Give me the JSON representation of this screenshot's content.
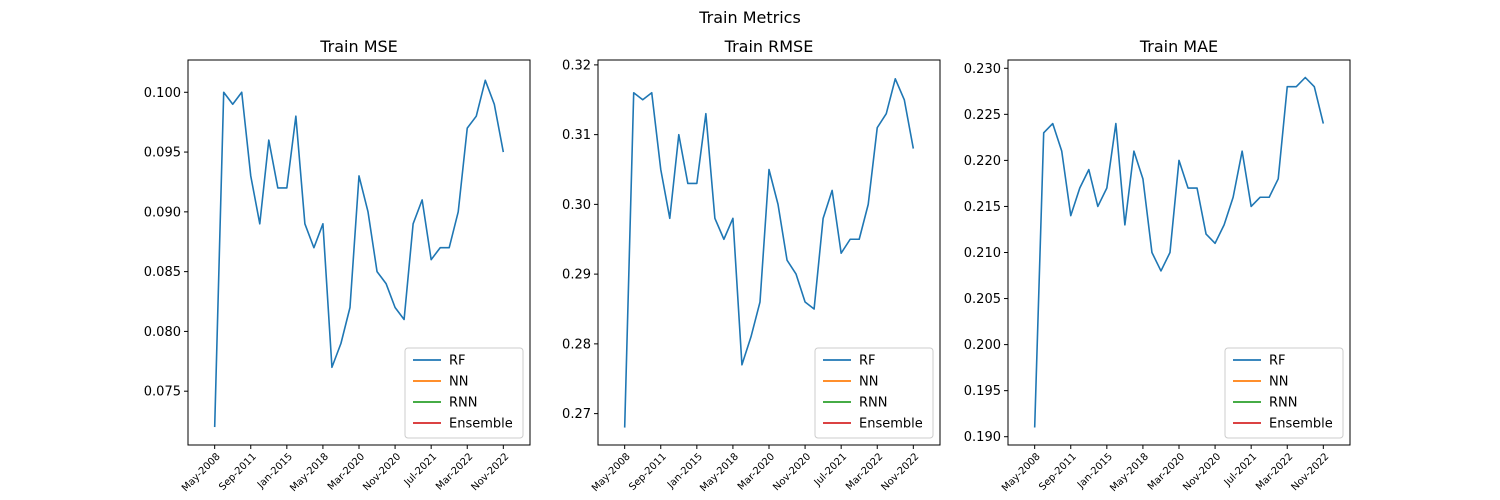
{
  "figure_title": "Train Metrics",
  "colors": {
    "RF": "#1f77b4",
    "NN": "#ff7f0e",
    "RNN": "#2ca02c",
    "Ensemble": "#d62728"
  },
  "legend_entries": [
    "RF",
    "NN",
    "RNN",
    "Ensemble"
  ],
  "chart_data": [
    {
      "type": "line",
      "title": "Train MSE",
      "xlabel": "",
      "ylabel": "",
      "ylim": [
        0.0705,
        0.1027
      ],
      "yticks": [
        0.075,
        0.08,
        0.085,
        0.09,
        0.095,
        0.1
      ],
      "ytick_labels": [
        "0.075",
        "0.080",
        "0.085",
        "0.090",
        "0.095",
        "0.100"
      ],
      "xtick_labels": [
        "May-2008",
        "Sep-2011",
        "Jan-2015",
        "May-2018",
        "Mar-2020",
        "Nov-2020",
        "Jul-2021",
        "Mar-2022",
        "Nov-2022"
      ],
      "legend_position": "lower right",
      "grid": false,
      "series": [
        {
          "name": "RF",
          "values": [
            0.072,
            0.1,
            0.099,
            0.1,
            0.093,
            0.089,
            0.096,
            0.092,
            0.092,
            0.098,
            0.089,
            0.087,
            0.089,
            0.077,
            0.079,
            0.082,
            0.093,
            0.09,
            0.085,
            0.084,
            0.082,
            0.081,
            0.089,
            0.091,
            0.086,
            0.087,
            0.087,
            0.09,
            0.097,
            0.098,
            0.101,
            0.099,
            0.095
          ]
        },
        {
          "name": "NN",
          "values": []
        },
        {
          "name": "RNN",
          "values": []
        },
        {
          "name": "Ensemble",
          "values": []
        }
      ]
    },
    {
      "type": "line",
      "title": "Train RMSE",
      "xlabel": "",
      "ylabel": "",
      "ylim": [
        0.2655,
        0.3207
      ],
      "yticks": [
        0.27,
        0.28,
        0.29,
        0.3,
        0.31,
        0.32
      ],
      "ytick_labels": [
        "0.27",
        "0.28",
        "0.29",
        "0.30",
        "0.31",
        "0.32"
      ],
      "xtick_labels": [
        "May-2008",
        "Sep-2011",
        "Jan-2015",
        "May-2018",
        "Mar-2020",
        "Nov-2020",
        "Jul-2021",
        "Mar-2022",
        "Nov-2022"
      ],
      "legend_position": "lower right",
      "grid": false,
      "series": [
        {
          "name": "RF",
          "values": [
            0.268,
            0.316,
            0.315,
            0.316,
            0.305,
            0.298,
            0.31,
            0.303,
            0.303,
            0.313,
            0.298,
            0.295,
            0.298,
            0.277,
            0.281,
            0.286,
            0.305,
            0.3,
            0.292,
            0.29,
            0.286,
            0.285,
            0.298,
            0.302,
            0.293,
            0.295,
            0.295,
            0.3,
            0.311,
            0.313,
            0.318,
            0.315,
            0.308
          ]
        },
        {
          "name": "NN",
          "values": []
        },
        {
          "name": "RNN",
          "values": []
        },
        {
          "name": "Ensemble",
          "values": []
        }
      ]
    },
    {
      "type": "line",
      "title": "Train MAE",
      "xlabel": "",
      "ylabel": "",
      "ylim": [
        0.1891,
        0.2309
      ],
      "yticks": [
        0.19,
        0.195,
        0.2,
        0.205,
        0.21,
        0.215,
        0.22,
        0.225,
        0.23
      ],
      "ytick_labels": [
        "0.190",
        "0.195",
        "0.200",
        "0.205",
        "0.210",
        "0.215",
        "0.220",
        "0.225",
        "0.230"
      ],
      "xtick_labels": [
        "May-2008",
        "Sep-2011",
        "Jan-2015",
        "May-2018",
        "Mar-2020",
        "Nov-2020",
        "Jul-2021",
        "Mar-2022",
        "Nov-2022"
      ],
      "legend_position": "lower right",
      "grid": false,
      "series": [
        {
          "name": "RF",
          "values": [
            0.191,
            0.223,
            0.224,
            0.221,
            0.214,
            0.217,
            0.219,
            0.215,
            0.217,
            0.224,
            0.213,
            0.221,
            0.218,
            0.21,
            0.208,
            0.21,
            0.22,
            0.217,
            0.217,
            0.212,
            0.211,
            0.213,
            0.216,
            0.221,
            0.215,
            0.216,
            0.216,
            0.218,
            0.228,
            0.228,
            0.229,
            0.228,
            0.224
          ]
        },
        {
          "name": "NN",
          "values": []
        },
        {
          "name": "RNN",
          "values": []
        },
        {
          "name": "Ensemble",
          "values": []
        }
      ]
    }
  ]
}
